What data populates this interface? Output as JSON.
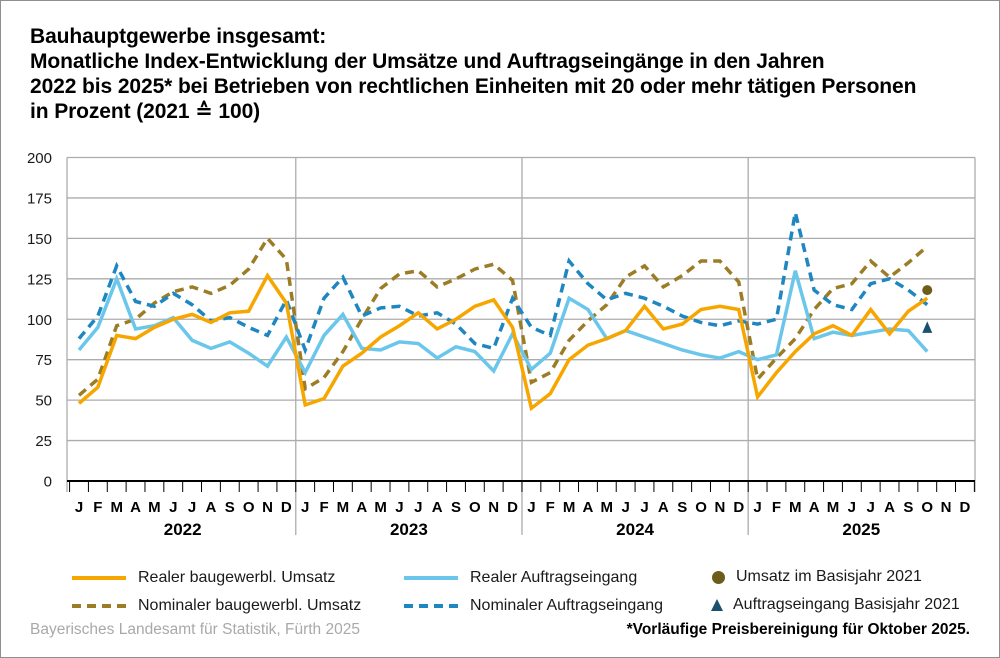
{
  "title": {
    "line1": "Bauhauptgewerbe insgesamt:",
    "line2": "Monatliche Index-Entwicklung der Umsätze und Auftragseingänge in den Jahren",
    "line3": "2022 bis 2025* bei Betrieben von rechtlichen Einheiten mit 20 oder mehr tätigen Personen",
    "line4": "in Prozent (2021 ≙ 100)"
  },
  "footer": {
    "source": "Bayerisches Landesamt für Statistik, Fürth 2025",
    "footnote": "*Vorläufige Preisbereinigung für Oktober 2025."
  },
  "chart_data": {
    "type": "line",
    "title": "Bauhauptgewerbe insgesamt: Monatliche Index-Entwicklung der Umsätze und Auftragseingänge 2022 bis 2025, in Prozent (2021 = 100)",
    "ylim": [
      0,
      200
    ],
    "ytick_step": 25,
    "grid": true,
    "x_months": [
      "J",
      "F",
      "M",
      "A",
      "M",
      "J",
      "J",
      "A",
      "S",
      "O",
      "N",
      "D"
    ],
    "years": [
      "2022",
      "2023",
      "2024",
      "2025"
    ],
    "series": [
      {
        "name": "Nominaler baugewerbl. Umsatz",
        "style": "dashed",
        "color": "#9C7D26",
        "values": [
          53,
          63,
          96,
          100,
          110,
          117,
          120,
          116,
          121,
          131,
          150,
          137,
          57,
          64,
          80,
          100,
          119,
          128,
          130,
          120,
          125,
          131,
          134,
          124,
          61,
          67,
          87,
          99,
          109,
          126,
          133,
          120,
          127,
          136,
          136,
          123,
          63,
          76,
          88,
          106,
          119,
          122,
          136,
          126,
          135,
          145
        ]
      },
      {
        "name": "Nominaler Auftragseingang",
        "style": "dashed",
        "color": "#1E87C1",
        "values": [
          88,
          102,
          133,
          111,
          108,
          116,
          109,
          99,
          101,
          95,
          90,
          112,
          81,
          113,
          126,
          102,
          107,
          108,
          102,
          104,
          97,
          85,
          82,
          113,
          95,
          90,
          136,
          122,
          112,
          116,
          113,
          108,
          102,
          98,
          96,
          99,
          97,
          100,
          166,
          118,
          109,
          106,
          122,
          125,
          118,
          109
        ]
      },
      {
        "name": "Realer Auftragseingang",
        "style": "solid",
        "color": "#6BC6EB",
        "values": [
          81,
          95,
          125,
          94,
          96,
          101,
          87,
          82,
          86,
          79,
          71,
          89,
          67,
          90,
          103,
          82,
          81,
          86,
          85,
          76,
          83,
          80,
          68,
          91,
          69,
          79,
          113,
          106,
          88,
          93,
          89,
          85,
          81,
          78,
          76,
          80,
          75,
          78,
          130,
          88,
          92,
          90,
          92,
          94,
          93,
          80
        ]
      },
      {
        "name": "Realer baugewerbl. Umsatz",
        "style": "solid",
        "color": "#F7A600",
        "values": [
          48,
          58,
          90,
          88,
          95,
          100,
          103,
          98,
          104,
          105,
          127,
          110,
          47,
          51,
          71,
          79,
          89,
          96,
          104,
          94,
          100,
          108,
          112,
          95,
          45,
          54,
          75,
          84,
          88,
          93,
          108,
          94,
          97,
          106,
          108,
          106,
          52,
          67,
          80,
          91,
          96,
          90,
          106,
          91,
          105,
          113
        ]
      }
    ],
    "markers": [
      {
        "name": "Umsatz im Basisjahr 2021",
        "shape": "circle",
        "color": "#6D5D18",
        "month_index": 45,
        "value": 118
      },
      {
        "name": "Auftragseingang Basisjahr 2021",
        "shape": "triangle",
        "color": "#1A516F",
        "month_index": 45,
        "value": 95
      }
    ]
  }
}
